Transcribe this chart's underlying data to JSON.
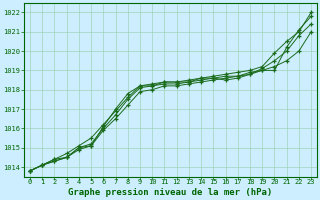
{
  "title": "Graphe pression niveau de la mer (hPa)",
  "bg_color": "#cceeff",
  "line_color": "#1a6b1a",
  "grid_color": "#99ccaa",
  "marker": "+",
  "xlim": [
    -0.5,
    23.5
  ],
  "ylim": [
    1013.5,
    1022.5
  ],
  "yticks": [
    1014,
    1015,
    1016,
    1017,
    1018,
    1019,
    1020,
    1021,
    1022
  ],
  "xticks": [
    0,
    1,
    2,
    3,
    4,
    5,
    6,
    7,
    8,
    9,
    10,
    11,
    12,
    13,
    14,
    15,
    16,
    17,
    18,
    19,
    20,
    21,
    22,
    23
  ],
  "series": [
    [
      1013.8,
      1014.1,
      1014.4,
      1014.5,
      1015.0,
      1015.1,
      1016.1,
      1017.0,
      1017.8,
      1018.2,
      1018.2,
      1018.4,
      1018.4,
      1018.4,
      1018.6,
      1018.6,
      1018.5,
      1018.6,
      1018.8,
      1019.0,
      1019.0,
      1020.2,
      1021.1,
      1021.8
    ],
    [
      1013.8,
      1014.1,
      1014.3,
      1014.5,
      1014.9,
      1015.1,
      1015.9,
      1016.5,
      1017.2,
      1017.9,
      1018.0,
      1018.2,
      1018.2,
      1018.3,
      1018.4,
      1018.5,
      1018.6,
      1018.7,
      1018.8,
      1019.1,
      1019.5,
      1020.0,
      1020.8,
      1021.4
    ],
    [
      1013.8,
      1014.1,
      1014.3,
      1014.5,
      1015.0,
      1015.2,
      1016.0,
      1016.7,
      1017.5,
      1018.1,
      1018.2,
      1018.3,
      1018.3,
      1018.4,
      1018.5,
      1018.6,
      1018.7,
      1018.7,
      1018.9,
      1019.0,
      1019.2,
      1019.5,
      1020.0,
      1021.0
    ],
    [
      1013.8,
      1014.1,
      1014.4,
      1014.7,
      1015.1,
      1015.5,
      1016.2,
      1016.9,
      1017.6,
      1018.2,
      1018.3,
      1018.4,
      1018.4,
      1018.5,
      1018.6,
      1018.7,
      1018.8,
      1018.9,
      1019.0,
      1019.2,
      1019.9,
      1020.5,
      1021.0,
      1022.0
    ]
  ]
}
